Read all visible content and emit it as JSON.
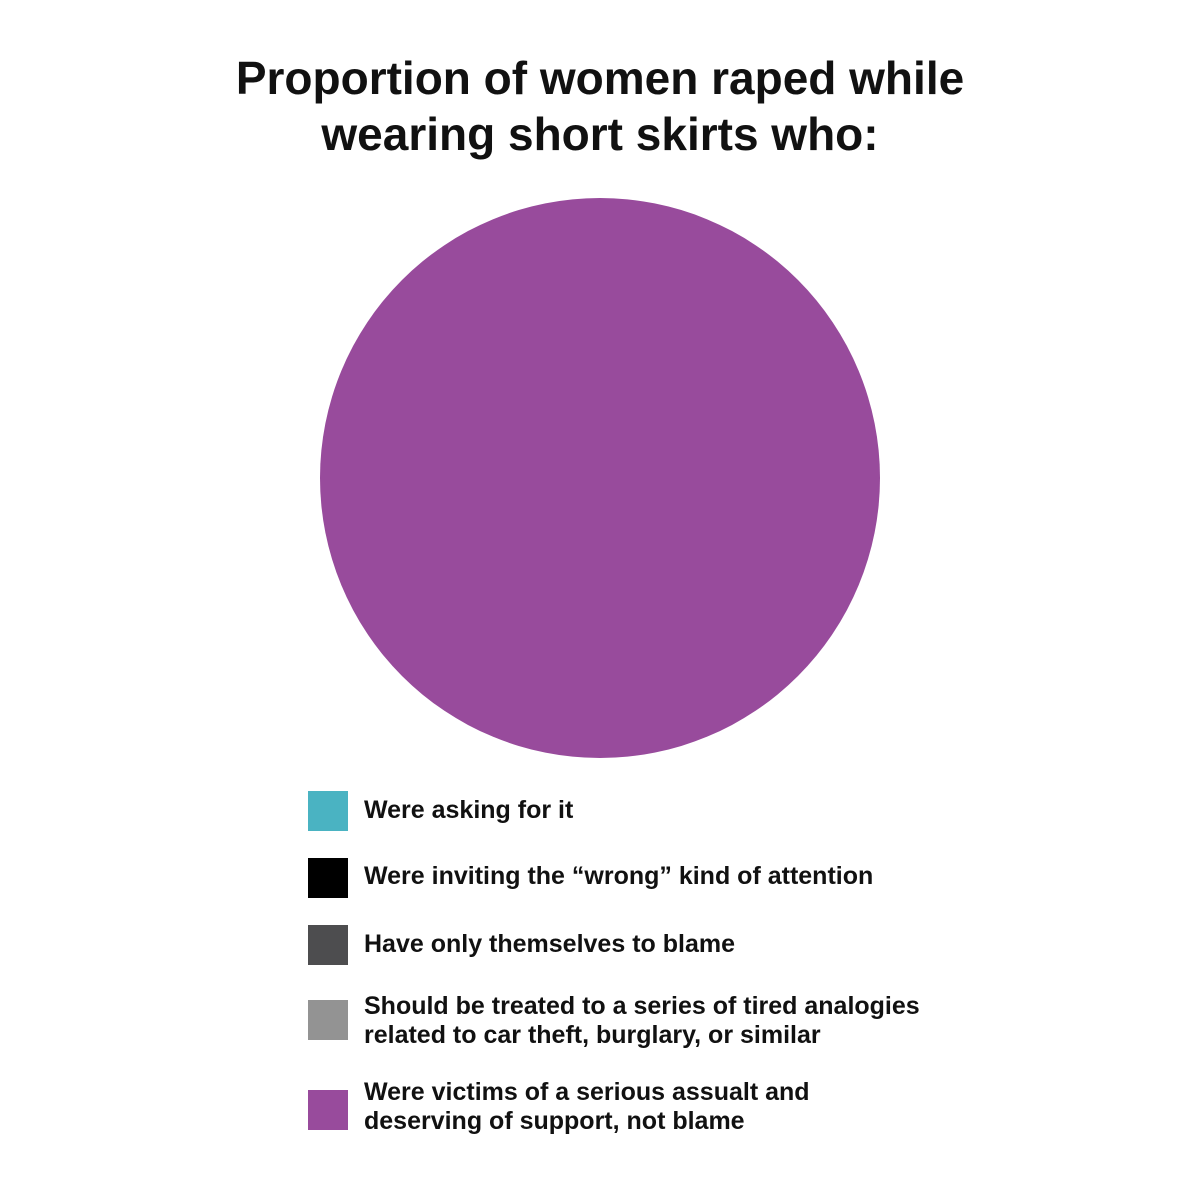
{
  "chart_data": {
    "type": "pie",
    "title": [
      "Proportion of women raped while",
      "wearing short skirts who:"
    ],
    "legend_placement": "bottom",
    "slices": [
      {
        "label": [
          "Were asking for it"
        ],
        "value": 0,
        "color": "#4ab3c2"
      },
      {
        "label": [
          "Were inviting the “wrong” kind of attention"
        ],
        "value": 0,
        "color": "#000000"
      },
      {
        "label": [
          "Have only themselves to blame"
        ],
        "value": 0,
        "color": "#4d4d4f"
      },
      {
        "label": [
          "Should be treated to a series of tired analogies",
          "related to car theft, burglary, or similar"
        ],
        "value": 0,
        "color": "#939393"
      },
      {
        "label": [
          "Were victims of a serious assualt and",
          "deserving of support, not blame"
        ],
        "value": 100,
        "color": "#984b9c"
      }
    ]
  }
}
